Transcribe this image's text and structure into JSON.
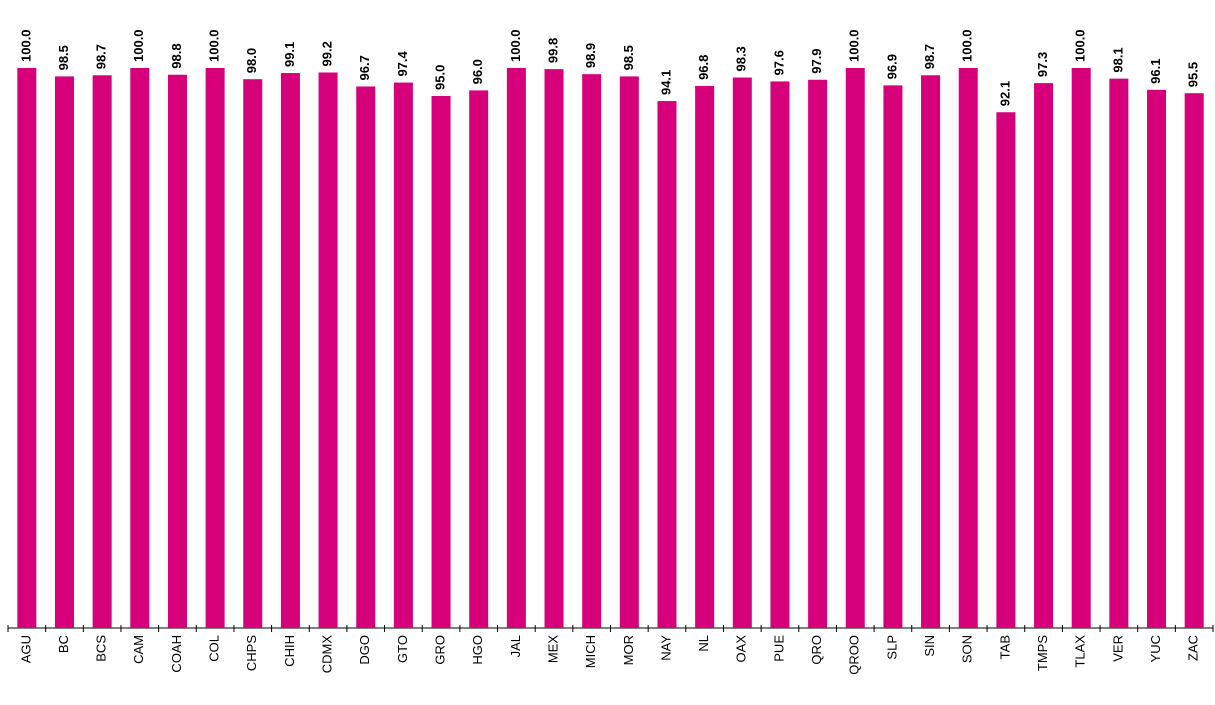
{
  "chart_data": {
    "type": "bar",
    "categories": [
      "AGU",
      "BC",
      "BCS",
      "CAM",
      "COAH",
      "COL",
      "CHPS",
      "CHIH",
      "CDMX",
      "DGO",
      "GTO",
      "GRO",
      "HGO",
      "JAL",
      "MEX",
      "MICH",
      "MOR",
      "NAY",
      "NL",
      "OAX",
      "PUE",
      "QRO",
      "QROO",
      "SLP",
      "SIN",
      "SON",
      "TAB",
      "TMPS",
      "TLAX",
      "VER",
      "YUC",
      "ZAC"
    ],
    "values": [
      100,
      98.5,
      98.7,
      100,
      98.8,
      100,
      98.0,
      99.1,
      99.2,
      96.7,
      97.4,
      95.0,
      96.0,
      100,
      99.8,
      98.9,
      98.5,
      94.1,
      96.8,
      98.3,
      97.6,
      97.9,
      100,
      96.9,
      98.7,
      100,
      92.1,
      97.3,
      100,
      98.1,
      96.1,
      95.5
    ],
    "value_labels": [
      "100.0",
      "98.5",
      "98.7",
      "100.0",
      "98.8",
      "100.0",
      "98.0",
      "99.1",
      "99.2",
      "96.7",
      "97.4",
      "95.0",
      "96.0",
      "100.0",
      "99.8",
      "98.9",
      "98.5",
      "94.1",
      "96.8",
      "98.3",
      "97.6",
      "97.9",
      "100.0",
      "96.9",
      "98.7",
      "100.0",
      "92.1",
      "97.3",
      "100.0",
      "98.1",
      "96.1",
      "95.5"
    ],
    "color": "#d6007b",
    "ylim": [
      0,
      100
    ]
  }
}
